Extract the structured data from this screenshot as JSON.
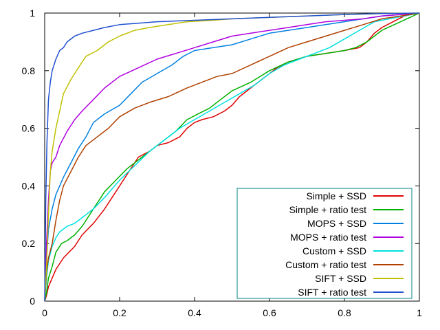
{
  "chart_data": {
    "type": "line",
    "title": "",
    "xlabel": "",
    "ylabel": "",
    "xlim": [
      0,
      1
    ],
    "ylim": [
      0,
      1
    ],
    "xticks": [
      "0",
      "0.2",
      "0.4",
      "0.6",
      "0.8",
      "1"
    ],
    "yticks": [
      "0",
      "0.2",
      "0.4",
      "0.6",
      "0.8",
      "1"
    ],
    "grid": false,
    "legend_position": "bottom-right",
    "series": [
      {
        "name": "Simple + SSD",
        "color": "#e00000",
        "x": [
          0.0,
          0.005,
          0.01,
          0.02,
          0.03,
          0.05,
          0.08,
          0.1,
          0.13,
          0.16,
          0.18,
          0.2,
          0.22,
          0.25,
          0.28,
          0.3,
          0.33,
          0.36,
          0.38,
          0.4,
          0.42,
          0.45,
          0.48,
          0.5,
          0.52,
          0.55,
          0.58,
          0.6,
          0.62,
          0.65,
          0.7,
          0.75,
          0.8,
          0.84,
          0.86,
          0.88,
          0.9,
          0.93,
          0.96,
          1.0
        ],
        "y": [
          0.0,
          0.02,
          0.05,
          0.08,
          0.11,
          0.15,
          0.19,
          0.23,
          0.27,
          0.32,
          0.36,
          0.4,
          0.44,
          0.5,
          0.52,
          0.54,
          0.55,
          0.57,
          0.6,
          0.62,
          0.63,
          0.64,
          0.66,
          0.68,
          0.71,
          0.74,
          0.77,
          0.79,
          0.81,
          0.83,
          0.85,
          0.86,
          0.87,
          0.88,
          0.9,
          0.93,
          0.95,
          0.97,
          0.99,
          1.0
        ]
      },
      {
        "name": "Simple + ratio test",
        "color": "#00b000",
        "x": [
          0.0,
          0.005,
          0.01,
          0.02,
          0.03,
          0.045,
          0.06,
          0.08,
          0.1,
          0.12,
          0.14,
          0.16,
          0.19,
          0.22,
          0.26,
          0.3,
          0.35,
          0.38,
          0.41,
          0.44,
          0.47,
          0.5,
          0.55,
          0.6,
          0.65,
          0.7,
          0.75,
          0.8,
          0.83,
          0.86,
          0.9,
          0.95,
          1.0
        ],
        "y": [
          0.0,
          0.03,
          0.08,
          0.12,
          0.17,
          0.2,
          0.21,
          0.23,
          0.26,
          0.3,
          0.34,
          0.38,
          0.42,
          0.46,
          0.5,
          0.54,
          0.59,
          0.63,
          0.65,
          0.67,
          0.7,
          0.73,
          0.76,
          0.8,
          0.83,
          0.85,
          0.86,
          0.87,
          0.88,
          0.9,
          0.94,
          0.97,
          1.0
        ]
      },
      {
        "name": "MOPS + SSD",
        "color": "#0080e0",
        "x": [
          0.0,
          0.005,
          0.01,
          0.02,
          0.03,
          0.05,
          0.07,
          0.09,
          0.11,
          0.13,
          0.16,
          0.2,
          0.23,
          0.26,
          0.3,
          0.34,
          0.37,
          0.4,
          0.45,
          0.5,
          0.55,
          0.6,
          0.65,
          0.7,
          0.75,
          0.8,
          0.85,
          0.9,
          0.95,
          1.0
        ],
        "y": [
          0.0,
          0.15,
          0.25,
          0.32,
          0.37,
          0.43,
          0.48,
          0.53,
          0.57,
          0.62,
          0.65,
          0.68,
          0.72,
          0.76,
          0.79,
          0.82,
          0.85,
          0.87,
          0.88,
          0.89,
          0.91,
          0.93,
          0.94,
          0.95,
          0.96,
          0.97,
          0.98,
          0.99,
          0.995,
          1.0
        ]
      },
      {
        "name": "MOPS + ratio test",
        "color": "#b000e0",
        "x": [
          0.0,
          0.005,
          0.01,
          0.015,
          0.02,
          0.03,
          0.04,
          0.06,
          0.08,
          0.1,
          0.13,
          0.16,
          0.2,
          0.25,
          0.3,
          0.35,
          0.4,
          0.45,
          0.5,
          0.55,
          0.6,
          0.65,
          0.7,
          0.75,
          0.8,
          0.85,
          0.9,
          0.95,
          1.0
        ],
        "y": [
          0.0,
          0.2,
          0.35,
          0.45,
          0.48,
          0.5,
          0.54,
          0.59,
          0.63,
          0.66,
          0.7,
          0.74,
          0.78,
          0.81,
          0.84,
          0.86,
          0.88,
          0.9,
          0.92,
          0.93,
          0.94,
          0.95,
          0.96,
          0.97,
          0.975,
          0.98,
          0.99,
          0.995,
          1.0
        ]
      },
      {
        "name": "Custom + SSD",
        "color": "#00e0e0",
        "x": [
          0.0,
          0.005,
          0.01,
          0.02,
          0.03,
          0.04,
          0.06,
          0.08,
          0.1,
          0.13,
          0.16,
          0.2,
          0.24,
          0.28,
          0.32,
          0.36,
          0.4,
          0.44,
          0.48,
          0.52,
          0.56,
          0.6,
          0.64,
          0.68,
          0.72,
          0.76,
          0.8,
          0.84,
          0.88,
          0.92,
          0.96,
          1.0
        ],
        "y": [
          0.0,
          0.08,
          0.14,
          0.19,
          0.22,
          0.24,
          0.26,
          0.27,
          0.29,
          0.32,
          0.36,
          0.42,
          0.47,
          0.52,
          0.56,
          0.6,
          0.63,
          0.66,
          0.69,
          0.72,
          0.75,
          0.79,
          0.82,
          0.84,
          0.86,
          0.88,
          0.91,
          0.94,
          0.97,
          0.98,
          0.99,
          1.0
        ]
      },
      {
        "name": "Custom + ratio test",
        "color": "#b04000",
        "x": [
          0.0,
          0.005,
          0.01,
          0.02,
          0.03,
          0.04,
          0.05,
          0.07,
          0.09,
          0.11,
          0.14,
          0.17,
          0.2,
          0.24,
          0.28,
          0.33,
          0.38,
          0.42,
          0.46,
          0.5,
          0.55,
          0.6,
          0.65,
          0.7,
          0.75,
          0.8,
          0.85,
          0.9,
          0.95,
          1.0
        ],
        "y": [
          0.0,
          0.1,
          0.15,
          0.2,
          0.28,
          0.35,
          0.4,
          0.45,
          0.5,
          0.54,
          0.57,
          0.6,
          0.64,
          0.67,
          0.69,
          0.71,
          0.74,
          0.76,
          0.78,
          0.79,
          0.82,
          0.85,
          0.88,
          0.9,
          0.92,
          0.94,
          0.96,
          0.98,
          0.99,
          1.0
        ]
      },
      {
        "name": "SIFT + SSD",
        "color": "#c0c000",
        "x": [
          0.0,
          0.005,
          0.01,
          0.015,
          0.02,
          0.03,
          0.04,
          0.05,
          0.07,
          0.09,
          0.11,
          0.14,
          0.17,
          0.2,
          0.24,
          0.28,
          0.33,
          0.38,
          0.45,
          0.5,
          0.6,
          0.7,
          0.8,
          0.9,
          1.0
        ],
        "y": [
          0.0,
          0.12,
          0.3,
          0.45,
          0.52,
          0.6,
          0.66,
          0.72,
          0.77,
          0.81,
          0.85,
          0.87,
          0.9,
          0.92,
          0.94,
          0.95,
          0.96,
          0.97,
          0.975,
          0.98,
          0.985,
          0.99,
          0.995,
          0.998,
          1.0
        ]
      },
      {
        "name": "SIFT + ratio test",
        "color": "#2050d0",
        "x": [
          0.0,
          0.003,
          0.006,
          0.01,
          0.015,
          0.02,
          0.03,
          0.04,
          0.05,
          0.06,
          0.08,
          0.1,
          0.13,
          0.16,
          0.2,
          0.25,
          0.3,
          0.4,
          0.5,
          0.6,
          0.7,
          0.8,
          0.9,
          1.0
        ],
        "y": [
          0.0,
          0.35,
          0.55,
          0.7,
          0.76,
          0.8,
          0.84,
          0.87,
          0.88,
          0.9,
          0.92,
          0.93,
          0.94,
          0.95,
          0.96,
          0.965,
          0.97,
          0.975,
          0.98,
          0.985,
          0.99,
          0.995,
          0.998,
          1.0
        ]
      }
    ]
  }
}
